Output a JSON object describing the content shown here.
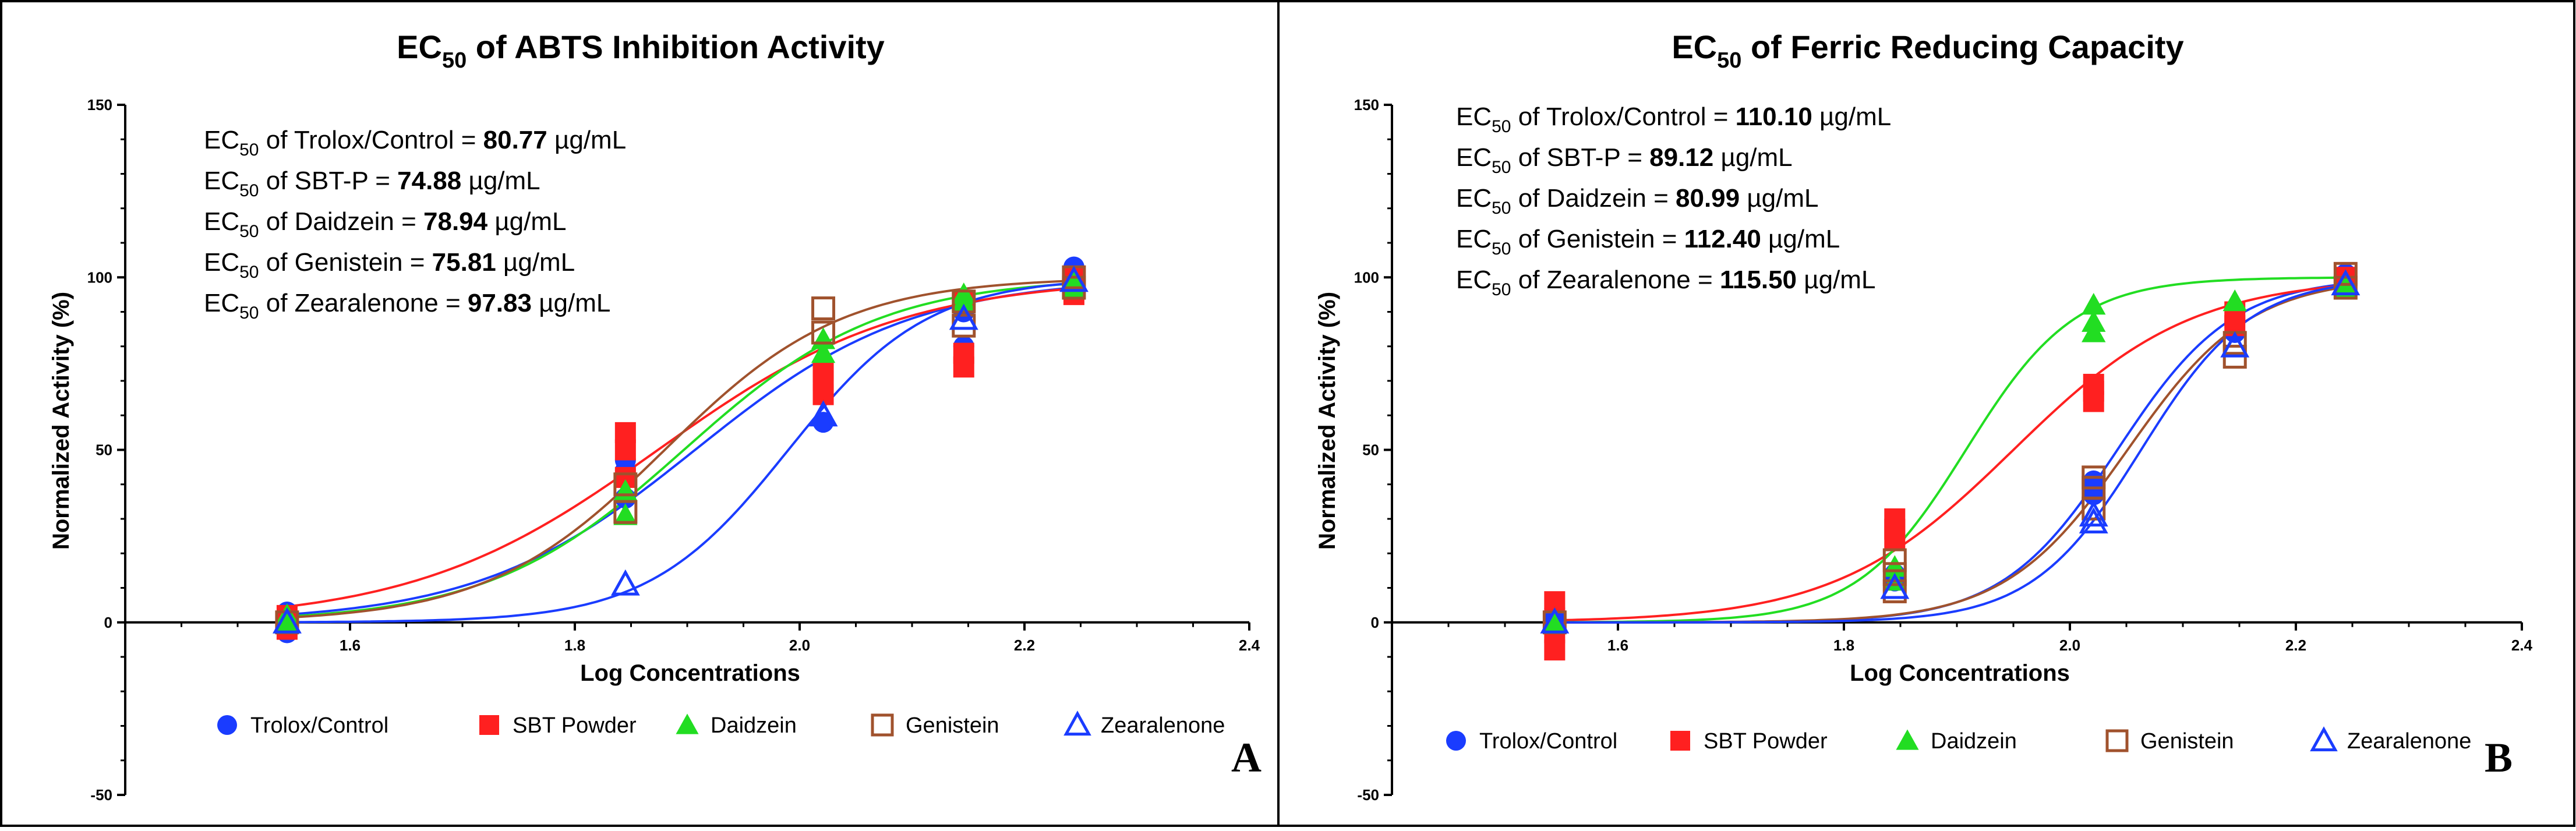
{
  "chart_data": [
    {
      "type": "scatter",
      "title": "EC50 of ABTS Inhibition Activity",
      "title_parts": {
        "pre": "EC",
        "sub": "50",
        "post": " of ABTS Inhibition Activity"
      },
      "xlabel": "Log Concentrations",
      "ylabel": "Normalized Activity (%)",
      "xlim": [
        1.4,
        2.4
      ],
      "ylim": [
        -50,
        150
      ],
      "x_ticks": [
        "1.6",
        "1.8",
        "2.0",
        "2.2",
        "2.4"
      ],
      "y_ticks": [
        "150",
        "100",
        "50",
        "0",
        "-50"
      ],
      "panel_label": "A",
      "annotations": [
        {
          "pre": "EC",
          "sub": "50",
          "name": " of Trolox/Control = ",
          "value": "80.77",
          "unit": " µg/mL"
        },
        {
          "pre": "EC",
          "sub": "50",
          "name": " of SBT-P = ",
          "value": "74.88",
          "unit": " µg/mL"
        },
        {
          "pre": "EC",
          "sub": "50",
          "name": " of Daidzein = ",
          "value": "78.94",
          "unit": " µg/mL"
        },
        {
          "pre": "EC",
          "sub": "50",
          "name": " of Genistein = ",
          "value": "75.81",
          "unit": " µg/mL"
        },
        {
          "pre": "EC",
          "sub": "50",
          "name": " of Zearalenone = ",
          "value": "97.83",
          "unit": " µg/mL"
        }
      ],
      "series": [
        {
          "name": "Trolox/Control",
          "color": "#1a3cff",
          "marker": "circle",
          "fill": true,
          "ec50_log": 1.907,
          "hill": 4.5,
          "points": [
            [
              1.544,
              -3
            ],
            [
              1.544,
              3
            ],
            [
              1.544,
              0
            ],
            [
              1.845,
              36
            ],
            [
              1.845,
              44
            ],
            [
              1.845,
              47
            ],
            [
              2.021,
              58
            ],
            [
              2.021,
              68
            ],
            [
              2.021,
              70
            ],
            [
              2.146,
              80
            ],
            [
              2.146,
              90
            ],
            [
              2.146,
              92
            ],
            [
              2.244,
              96
            ],
            [
              2.244,
              100
            ],
            [
              2.244,
              103
            ]
          ]
        },
        {
          "name": "SBT Powder",
          "color": "#ff2020",
          "marker": "square",
          "fill": true,
          "ec50_log": 1.874,
          "hill": 4.0,
          "points": [
            [
              1.544,
              -2
            ],
            [
              1.544,
              2
            ],
            [
              1.845,
              42
            ],
            [
              1.845,
              50
            ],
            [
              1.845,
              55
            ],
            [
              2.021,
              66
            ],
            [
              2.021,
              70
            ],
            [
              2.021,
              73
            ],
            [
              2.146,
              74
            ],
            [
              2.146,
              78
            ],
            [
              2.146,
              93
            ],
            [
              2.244,
              95
            ],
            [
              2.244,
              98
            ],
            [
              2.244,
              100
            ]
          ]
        },
        {
          "name": "Daidzein",
          "color": "#22dd22",
          "marker": "triangle",
          "fill": true,
          "ec50_log": 1.897,
          "hill": 5.0,
          "points": [
            [
              1.544,
              0
            ],
            [
              1.544,
              2
            ],
            [
              1.845,
              31
            ],
            [
              1.845,
              38
            ],
            [
              2.021,
              78
            ],
            [
              2.021,
              82
            ],
            [
              2.146,
              93
            ],
            [
              2.146,
              95
            ],
            [
              2.244,
              97
            ],
            [
              2.244,
              99
            ]
          ]
        },
        {
          "name": "Genistein",
          "color": "#a0522d",
          "marker": "square",
          "fill": false,
          "ec50_log": 1.88,
          "hill": 5.5,
          "points": [
            [
              1.544,
              0
            ],
            [
              1.845,
              32
            ],
            [
              1.845,
              40
            ],
            [
              2.021,
              84
            ],
            [
              2.021,
              91
            ],
            [
              2.146,
              86
            ],
            [
              2.146,
              93
            ],
            [
              2.244,
              97
            ],
            [
              2.244,
              100
            ]
          ]
        },
        {
          "name": "Zearalenone",
          "color": "#1a3cff",
          "marker": "triangle",
          "fill": false,
          "ec50_log": 1.99,
          "hill": 7.0,
          "points": [
            [
              1.544,
              0
            ],
            [
              1.845,
              11
            ],
            [
              2.021,
              60
            ],
            [
              2.146,
              88
            ],
            [
              2.244,
              99
            ]
          ]
        }
      ]
    },
    {
      "type": "scatter",
      "title": "EC50 of Ferric Reducing Capacity",
      "title_parts": {
        "pre": "EC",
        "sub": "50",
        "post": " of Ferric Reducing Capacity"
      },
      "xlabel": "Log Concentrations",
      "ylabel": "Normalized Activity (%)",
      "xlim": [
        1.4,
        2.4
      ],
      "ylim": [
        -50,
        150
      ],
      "x_ticks": [
        "1.6",
        "1.8",
        "2.0",
        "2.2",
        "2.4"
      ],
      "y_ticks": [
        "150",
        "100",
        "50",
        "0",
        "-50"
      ],
      "panel_label": "B",
      "annotations": [
        {
          "pre": "EC",
          "sub": "50",
          "name": " of Trolox/Control = ",
          "value": "110.10",
          "unit": " µg/mL"
        },
        {
          "pre": "EC",
          "sub": "50",
          "name": " of SBT-P = ",
          "value": "89.12",
          "unit": " µg/mL"
        },
        {
          "pre": "EC",
          "sub": "50",
          "name": " of Daidzein = ",
          "value": "80.99",
          "unit": " µg/mL"
        },
        {
          "pre": "EC",
          "sub": "50",
          "name": " of Genistein = ",
          "value": "112.40",
          "unit": " µg/mL"
        },
        {
          "pre": "EC",
          "sub": "50",
          "name": " of Zearalenone = ",
          "value": "115.50",
          "unit": " µg/mL"
        }
      ],
      "series": [
        {
          "name": "Trolox/Control",
          "color": "#1a3cff",
          "marker": "circle",
          "fill": true,
          "ec50_log": 2.042,
          "hill": 8.5,
          "points": [
            [
              1.544,
              -3
            ],
            [
              1.544,
              1
            ],
            [
              1.544,
              4
            ],
            [
              1.845,
              12
            ],
            [
              1.845,
              14
            ],
            [
              2.021,
              37
            ],
            [
              2.021,
              39
            ],
            [
              2.021,
              41
            ],
            [
              2.146,
              84
            ],
            [
              2.146,
              87
            ],
            [
              2.244,
              98
            ],
            [
              2.244,
              101
            ]
          ]
        },
        {
          "name": "SBT Powder",
          "color": "#ff2020",
          "marker": "square",
          "fill": true,
          "ec50_log": 1.95,
          "hill": 5.5,
          "points": [
            [
              1.544,
              -8
            ],
            [
              1.544,
              -3
            ],
            [
              1.544,
              6
            ],
            [
              1.845,
              24
            ],
            [
              1.845,
              27
            ],
            [
              1.845,
              30
            ],
            [
              2.021,
              64
            ],
            [
              2.021,
              67
            ],
            [
              2.021,
              69
            ],
            [
              2.146,
              86
            ],
            [
              2.146,
              90
            ],
            [
              2.244,
              97
            ],
            [
              2.244,
              100
            ]
          ]
        },
        {
          "name": "Daidzein",
          "color": "#22dd22",
          "marker": "triangle",
          "fill": true,
          "ec50_log": 1.908,
          "hill": 9.0,
          "points": [
            [
              1.544,
              0
            ],
            [
              1.845,
              12
            ],
            [
              1.845,
              16
            ],
            [
              2.021,
              84
            ],
            [
              2.021,
              87
            ],
            [
              2.021,
              92
            ],
            [
              2.146,
              93
            ],
            [
              2.244,
              97
            ]
          ]
        },
        {
          "name": "Genistein",
          "color": "#a0522d",
          "marker": "square",
          "fill": false,
          "ec50_log": 2.051,
          "hill": 8.0,
          "points": [
            [
              1.544,
              0
            ],
            [
              1.845,
              9
            ],
            [
              1.845,
              14
            ],
            [
              1.845,
              18
            ],
            [
              2.021,
              33
            ],
            [
              2.021,
              39
            ],
            [
              2.021,
              42
            ],
            [
              2.146,
              77
            ],
            [
              2.146,
              81
            ],
            [
              2.244,
              97
            ],
            [
              2.244,
              101
            ]
          ]
        },
        {
          "name": "Zearalenone",
          "color": "#1a3cff",
          "marker": "triangle",
          "fill": false,
          "ec50_log": 2.063,
          "hill": 9.0,
          "points": [
            [
              1.544,
              0
            ],
            [
              1.845,
              10
            ],
            [
              2.021,
              29
            ],
            [
              2.021,
              31
            ],
            [
              2.146,
              80
            ],
            [
              2.244,
              98
            ]
          ]
        }
      ]
    }
  ]
}
